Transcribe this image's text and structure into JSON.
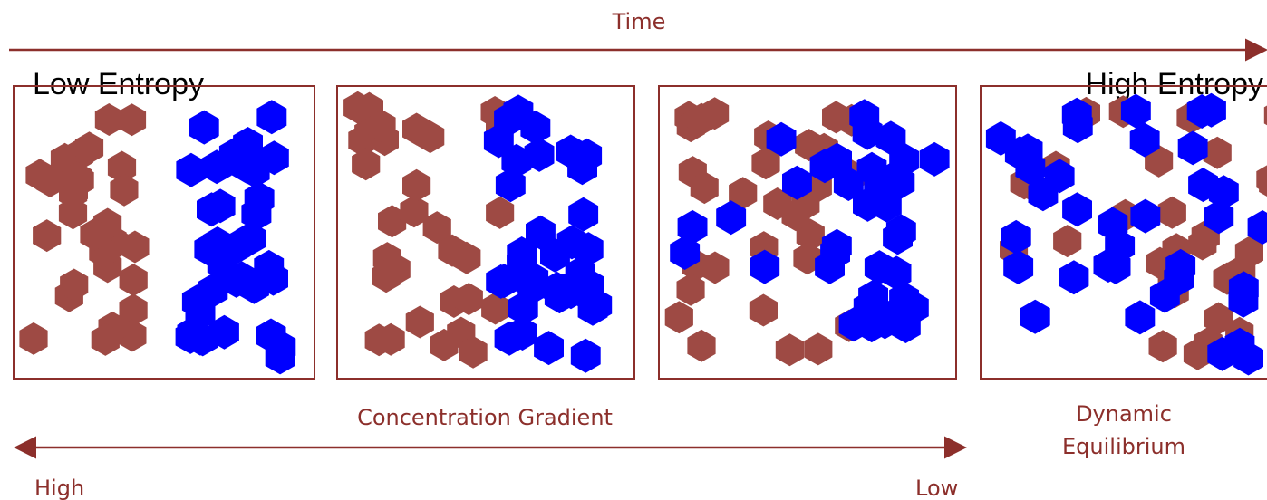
{
  "time_label": "Time",
  "left_label": "Low Entropy",
  "right_label": "High Entropy",
  "gradient_label": "Concentration Gradient",
  "equilibrium_label": [
    "Dynamic",
    "Equilibrium"
  ],
  "axis_labels": {
    "high": "High",
    "low": "Low"
  }
}
